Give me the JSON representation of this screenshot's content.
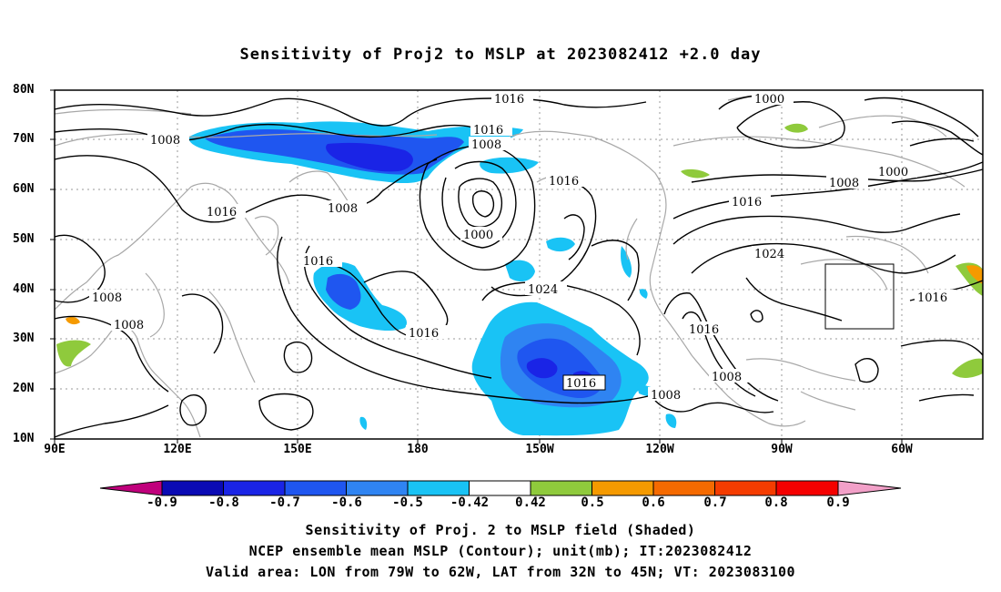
{
  "title": "Sensitivity of Proj2 to MSLP at 2023082412 +2.0 day",
  "y_axis": [
    "80N",
    "70N",
    "60N",
    "50N",
    "40N",
    "30N",
    "20N",
    "10N"
  ],
  "x_axis": [
    "90E",
    "120E",
    "150E",
    "180",
    "150W",
    "120W",
    "90W",
    "60W"
  ],
  "colorbar": {
    "labels": [
      "-0.9",
      "-0.8",
      "-0.7",
      "-0.6",
      "-0.5",
      "-0.42",
      "0.42",
      "0.5",
      "0.6",
      "0.7",
      "0.8",
      "0.9"
    ],
    "colors": [
      "#c0007c",
      "#0a0ab4",
      "#1a24e6",
      "#1f56f0",
      "#2f84f2",
      "#19c3f5",
      "#ffffff",
      "#8fca3c",
      "#f59a00",
      "#f56a00",
      "#f53c00",
      "#f50000",
      "#f2a0c8"
    ]
  },
  "contour_labels": {
    "l1016_top": "1016",
    "l1000_tr": "1000",
    "l1008_nw": "1008",
    "l1016_a": "1016",
    "l1008_b": "1008",
    "l1016_c": "1016",
    "l1000_ne": "1000",
    "l1008_ne": "1008",
    "l1016_w": "1016",
    "l1008_mid": "1008",
    "l1016_ne2": "1016",
    "l1000_center": "1000",
    "l1024_ne": "1024",
    "l1016_isl": "1016",
    "l1008_w1": "1008",
    "l1024_mid": "1024",
    "l1016_e": "1016",
    "l1008_w2": "1008",
    "l1016_s": "1016",
    "l1016_coast": "1016",
    "l1016_box": "1016",
    "l1008_coast": "1008",
    "l1008_pac": "1008"
  },
  "captions": {
    "line1": "Sensitivity of Proj. 2 to MSLP field (Shaded)",
    "line2": "NCEP ensemble mean MSLP (Contour); unit(mb); IT:2023082412",
    "line3": "Valid area: LON from 79W to 62W, LAT from 32N to 45N; VT: 2023083100"
  }
}
